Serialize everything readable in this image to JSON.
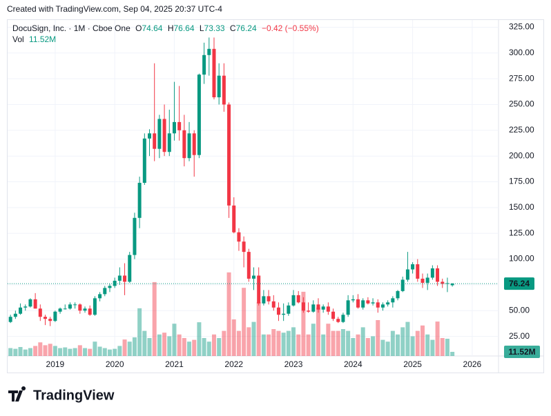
{
  "header": {
    "credit": "Created with TradingView.com, Sep 04, 2025 20:37 UTC-4",
    "brand": "TradingView"
  },
  "chart_data": {
    "type": "candlestick",
    "title": "DocuSign, Inc. · 1M · Cboe One",
    "ohlc_letters": [
      "O",
      "H",
      "L",
      "C"
    ],
    "change": "−0.42 (−0.55%)",
    "volume_title": "Vol",
    "volume_last_label": "11.52M",
    "up_color": "#089981",
    "down_color": "#f23645",
    "open": [
      39,
      44,
      47,
      53,
      54,
      61,
      52,
      44,
      42,
      40,
      49,
      52,
      52,
      56,
      56,
      50,
      52,
      46,
      62,
      66,
      72,
      74,
      79,
      84,
      78,
      104,
      140,
      174,
      217,
      222,
      207,
      236,
      204,
      222,
      233,
      225,
      198,
      222,
      201,
      279,
      298,
      304,
      257,
      278,
      250,
      152,
      126,
      117,
      107,
      81,
      84,
      57,
      64,
      59,
      53,
      46,
      47,
      55,
      65,
      58,
      50,
      49,
      56,
      51,
      54,
      49,
      42,
      39,
      46,
      60,
      61,
      53,
      60,
      57,
      58,
      53,
      56,
      58,
      62,
      69,
      80,
      90,
      95,
      81,
      77,
      82,
      91,
      78,
      76,
      74.64
    ],
    "high": [
      46,
      50,
      57,
      56,
      62,
      67,
      56,
      46,
      44,
      50,
      53,
      56,
      58,
      58,
      57,
      54,
      55,
      64,
      68,
      74,
      76,
      82,
      92,
      96,
      107,
      145,
      180,
      222,
      226,
      290,
      240,
      250,
      245,
      272,
      268,
      240,
      233,
      225,
      280,
      310,
      315,
      315,
      290,
      290,
      252,
      160,
      130,
      122,
      110,
      92,
      92,
      70,
      70,
      65,
      58,
      57,
      58,
      70,
      69,
      63,
      58,
      60,
      62,
      56,
      58,
      52,
      44,
      48,
      65,
      65,
      66,
      62,
      63,
      62,
      61,
      58,
      60,
      64,
      70,
      83,
      107,
      97,
      100,
      86,
      86,
      94,
      94,
      81,
      82,
      76.64
    ],
    "low": [
      38,
      42,
      46,
      50,
      53,
      52,
      40,
      36,
      35,
      39,
      47,
      51,
      51,
      52,
      47,
      48,
      45,
      45,
      59,
      64,
      68,
      72,
      75,
      65,
      77,
      100,
      130,
      172,
      200,
      195,
      198,
      200,
      200,
      215,
      215,
      190,
      195,
      180,
      198,
      270,
      278,
      255,
      250,
      243,
      140,
      125,
      108,
      92,
      78,
      70,
      55,
      55,
      56,
      50,
      40,
      40,
      45,
      54,
      57,
      48,
      48,
      48,
      48,
      48,
      46,
      40,
      38,
      38,
      44,
      58,
      52,
      51,
      56,
      55,
      48,
      50,
      54,
      53,
      60,
      68,
      78,
      86,
      78,
      72,
      70,
      80,
      74,
      72,
      68,
      73.33
    ],
    "close": [
      44,
      47,
      53,
      54,
      61,
      52,
      44,
      42,
      40,
      49,
      52,
      52,
      56,
      56,
      50,
      52,
      46,
      62,
      66,
      72,
      74,
      79,
      84,
      78,
      104,
      140,
      174,
      217,
      222,
      207,
      236,
      204,
      222,
      233,
      225,
      198,
      222,
      201,
      279,
      298,
      304,
      257,
      278,
      250,
      152,
      126,
      117,
      107,
      81,
      84,
      57,
      64,
      59,
      53,
      46,
      47,
      55,
      65,
      58,
      50,
      49,
      56,
      51,
      54,
      49,
      42,
      39,
      46,
      60,
      61,
      53,
      60,
      57,
      58,
      53,
      56,
      58,
      62,
      69,
      80,
      90,
      95,
      81,
      77,
      82,
      91,
      78,
      76,
      76.66,
      76.24
    ],
    "volume": [
      22,
      20,
      25,
      18,
      22,
      28,
      38,
      30,
      34,
      28,
      22,
      24,
      20,
      22,
      30,
      22,
      20,
      40,
      26,
      22,
      18,
      20,
      28,
      46,
      40,
      52,
      133,
      70,
      50,
      206,
      60,
      65,
      55,
      90,
      60,
      50,
      40,
      45,
      94,
      50,
      40,
      60,
      50,
      70,
      233,
      102,
      70,
      190,
      80,
      95,
      150,
      60,
      60,
      75,
      70,
      65,
      70,
      80,
      60,
      179,
      60,
      90,
      135,
      60,
      90,
      70,
      70,
      75,
      70,
      50,
      60,
      80,
      50,
      55,
      100,
      45,
      40,
      70,
      60,
      80,
      95,
      55,
      70,
      85,
      60,
      45,
      96,
      50,
      48,
      11.52
    ],
    "volume_ylim": [
      0,
      250
    ],
    "xlim": [
      -0.58,
      98.3
    ],
    "xticks": [
      {
        "value": 9,
        "label": "2019"
      },
      {
        "value": 21,
        "label": "2020"
      },
      {
        "value": 33,
        "label": "2021"
      },
      {
        "value": 45,
        "label": "2022"
      },
      {
        "value": 57,
        "label": "2023"
      },
      {
        "value": 69,
        "label": "2024"
      },
      {
        "value": 81,
        "label": "2025"
      },
      {
        "value": 93,
        "label": "2026"
      }
    ],
    "ylim": [
      6,
      332
    ],
    "yticks": [
      {
        "value": 25,
        "label": "25.00"
      },
      {
        "value": 50,
        "label": "50.00"
      },
      {
        "value": 75,
        "label": "75.00"
      },
      {
        "value": 100,
        "label": "100.00"
      },
      {
        "value": 125,
        "label": "125.00"
      },
      {
        "value": 150,
        "label": "150.00"
      },
      {
        "value": 175,
        "label": "175.00"
      },
      {
        "value": 200,
        "label": "200.00"
      },
      {
        "value": 225,
        "label": "225.00"
      },
      {
        "value": 250,
        "label": "250.00"
      },
      {
        "value": 275,
        "label": "275.00"
      },
      {
        "value": 300,
        "label": "300.00"
      },
      {
        "value": 325,
        "label": "325.00"
      }
    ],
    "grid": true
  }
}
